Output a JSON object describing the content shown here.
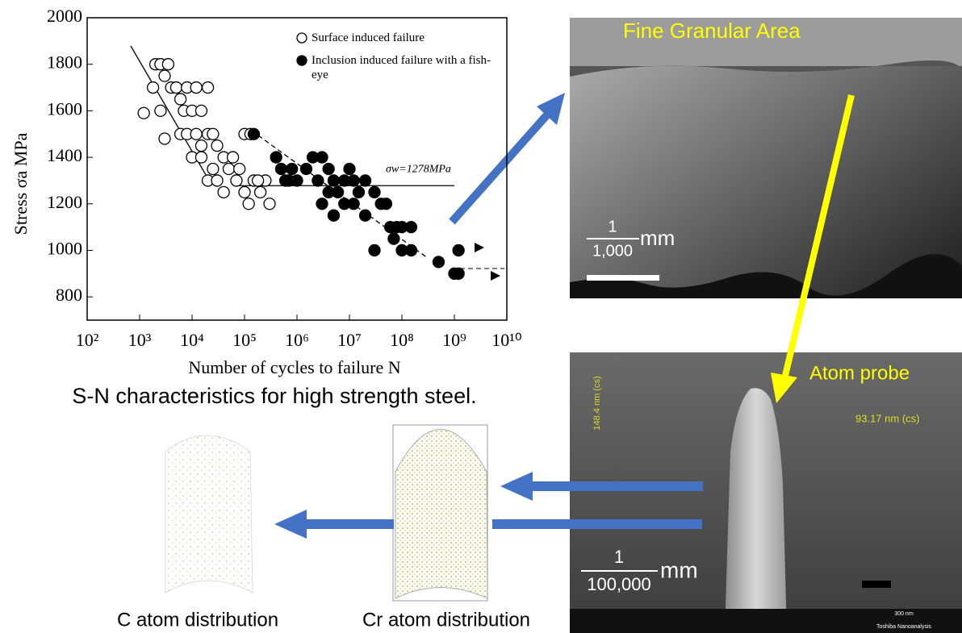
{
  "chart_data": {
    "type": "scatter",
    "y_label": "Stress  σa  MPa",
    "x_label": "Number of cycles to failure  N",
    "log_x": true,
    "xlim": [
      100,
      10000000000
    ],
    "xticks": [
      {
        "value": 100,
        "label": "10²"
      },
      {
        "value": 1000,
        "label": "10³"
      },
      {
        "value": 10000,
        "label": "10⁴"
      },
      {
        "value": 100000,
        "label": "10⁵"
      },
      {
        "value": 1000000,
        "label": "10⁶"
      },
      {
        "value": 10000000,
        "label": "10⁷"
      },
      {
        "value": 100000000,
        "label": "10⁸"
      },
      {
        "value": 1000000000,
        "label": "10⁹"
      },
      {
        "value": 10000000000,
        "label": "10¹⁰"
      }
    ],
    "ylim": [
      700,
      2000
    ],
    "yticks": [
      800,
      1000,
      1200,
      1400,
      1600,
      1800,
      2000
    ],
    "legend": "top-right",
    "series": [
      {
        "name": "Surface induced failure",
        "marker": "open",
        "color": "#000000",
        "x": [
          1200,
          1800,
          2000,
          2500,
          3000,
          3500,
          2500,
          3000,
          4000,
          5000,
          6000,
          7000,
          8000,
          10000,
          12000,
          15000,
          20000,
          6000,
          8000,
          12000,
          15000,
          20000,
          25000,
          30000,
          40000,
          10000,
          15000,
          20000,
          25000,
          30000,
          40000,
          50000,
          60000,
          70000,
          80000,
          100000,
          130000,
          100000,
          120000,
          150000,
          200000,
          250000,
          300000,
          180000
        ],
        "values": [
          1590,
          1700,
          1800,
          1800,
          1750,
          1800,
          1600,
          1480,
          1700,
          1700,
          1650,
          1600,
          1700,
          1600,
          1700,
          1600,
          1700,
          1500,
          1500,
          1500,
          1450,
          1500,
          1500,
          1450,
          1400,
          1400,
          1400,
          1300,
          1350,
          1300,
          1250,
          1350,
          1400,
          1300,
          1350,
          1500,
          1500,
          1250,
          1200,
          1300,
          1250,
          1300,
          1200,
          1300
        ]
      },
      {
        "name": "Inclusion induced failure with a fish-eye",
        "marker": "filled",
        "color": "#000000",
        "x": [
          150000,
          400000,
          500000,
          600000,
          800000,
          1000000,
          1500000,
          2000000,
          2500000,
          3000000,
          4000000,
          5000000,
          6000000,
          8000000,
          10000000,
          12000000,
          15000000,
          20000000,
          30000000,
          40000000,
          50000000,
          60000000,
          80000000,
          100000000,
          150000000,
          70000000,
          100000000,
          150000000,
          30000000,
          20000000,
          5000000,
          3000000,
          700000,
          4000000,
          8000000,
          12000000,
          500000000,
          1200000000,
          1200000000,
          1000000000
        ],
        "values": [
          1500,
          1400,
          1350,
          1300,
          1350,
          1300,
          1350,
          1400,
          1300,
          1400,
          1350,
          1300,
          1250,
          1300,
          1350,
          1300,
          1250,
          1300,
          1250,
          1200,
          1200,
          1100,
          1100,
          1100,
          1100,
          1050,
          1000,
          1000,
          1000,
          1150,
          1150,
          1200,
          1300,
          1250,
          1200,
          1200,
          950,
          1000,
          900,
          900
        ]
      }
    ],
    "annotations": [
      {
        "label": "σw=1278MPa",
        "value": 1278
      }
    ]
  },
  "caption": "S-N characteristics for high strength steel.",
  "fga_image": {
    "title": "Fine Granular Area",
    "scale_num": "1",
    "scale_den": "1,000",
    "scale_unit": "mm"
  },
  "probe_image": {
    "title": "Atom probe",
    "dim1": "148.4 nm (cs)",
    "dim2": "93.17 nm (cs)",
    "scale_num": "1",
    "scale_den": "100,000",
    "scale_unit": "mm",
    "bar_scale": "300 nm",
    "bar_vendor": "Toshiba Nanoanalysis"
  },
  "maps": {
    "c": "C atom distribution",
    "cr": "Cr atom distribution"
  }
}
